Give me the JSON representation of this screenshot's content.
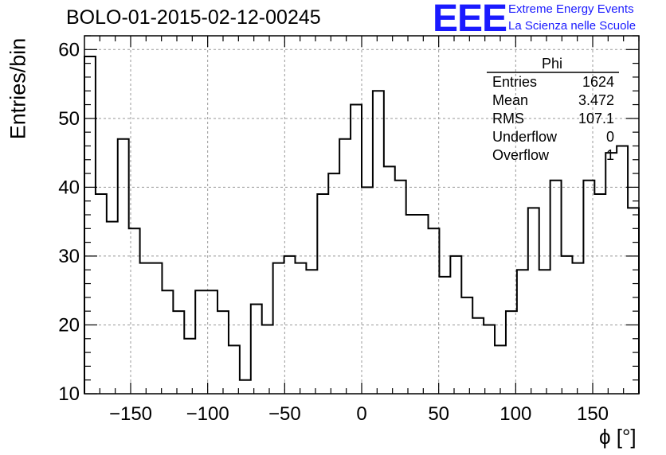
{
  "title": "BOLO-01-2015-02-12-00245",
  "logo": {
    "mark": "EEE",
    "line1": "Extreme Energy Events",
    "line2": "La Scienza nelle Scuole",
    "color": "#1a1aff"
  },
  "stats": {
    "title": "Phi",
    "rows": [
      {
        "label": "Entries",
        "value": "1624"
      },
      {
        "label": "Mean",
        "value": "3.472"
      },
      {
        "label": "RMS",
        "value": "107.1"
      },
      {
        "label": "Underflow",
        "value": "0"
      },
      {
        "label": "Overflow",
        "value": "1"
      }
    ]
  },
  "chart_data": {
    "type": "bar",
    "style": "step-histogram",
    "xlabel": "ϕ [°]",
    "ylabel": "Entries/bin",
    "xlim": [
      -180,
      180
    ],
    "ylim": [
      10,
      62
    ],
    "grid": true,
    "bin_width": 7.2,
    "x_ticks": [
      -150,
      -100,
      -50,
      0,
      50,
      100,
      150
    ],
    "y_ticks": [
      10,
      20,
      30,
      40,
      50,
      60
    ],
    "values": [
      59,
      39,
      35,
      47,
      34,
      29,
      29,
      25,
      22,
      18,
      25,
      25,
      22,
      17,
      12,
      23,
      20,
      29,
      30,
      29,
      28,
      39,
      42,
      47,
      52,
      40,
      54,
      43,
      41,
      36,
      36,
      34,
      27,
      30,
      24,
      21,
      20,
      17,
      22,
      28,
      37,
      28,
      41,
      30,
      29,
      41,
      39,
      45,
      46,
      37
    ]
  }
}
